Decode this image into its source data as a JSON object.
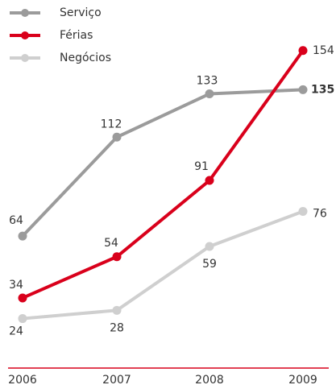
{
  "chart_data": {
    "type": "line",
    "categories": [
      "2006",
      "2007",
      "2008",
      "2009"
    ],
    "series": [
      {
        "name": "Serviço",
        "color": "#9b9b9b",
        "values": [
          64,
          112,
          133,
          135
        ]
      },
      {
        "name": "Férias",
        "color": "#d9001b",
        "values": [
          34,
          54,
          91,
          154
        ]
      },
      {
        "name": "Negócios",
        "color": "#cfcfcf",
        "values": [
          24,
          28,
          59,
          76
        ]
      }
    ],
    "legend": "top-left"
  }
}
